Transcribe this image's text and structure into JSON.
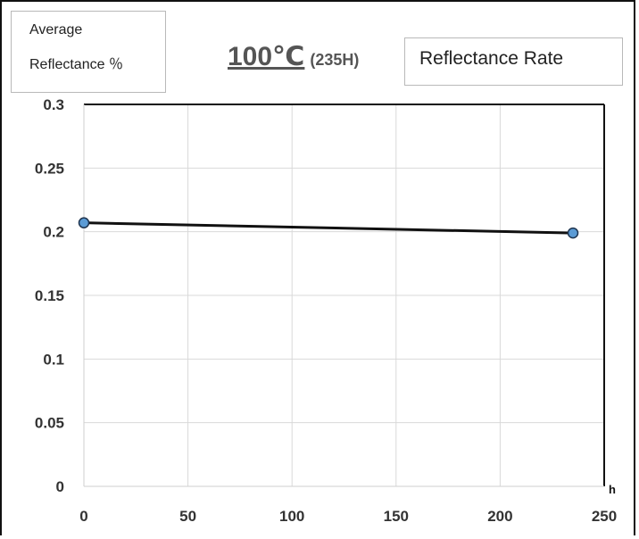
{
  "y_unit_label": {
    "line1": "Average",
    "line2": "Reflectance ％"
  },
  "title": {
    "temperature": "100℃",
    "duration": "(235H)"
  },
  "legend_label": "Reflectance Rate",
  "x_unit": "h",
  "colors": {
    "line": "#111111",
    "marker_fill": "#5b9bd5",
    "marker_edge": "#1f3550",
    "grid": "#d9d9d9"
  },
  "chart_data": {
    "type": "line",
    "x_ticks": [
      "0",
      "50",
      "100",
      "150",
      "200",
      "250"
    ],
    "y_ticks": [
      "0",
      "0.05",
      "0.1",
      "0.15",
      "0.2",
      "0.25",
      "0.3"
    ],
    "xlim": [
      0,
      250
    ],
    "ylim": [
      0,
      0.3
    ],
    "grid": true,
    "series": [
      {
        "name": "Reflectance Rate",
        "x": [
          0,
          235
        ],
        "y": [
          0.207,
          0.199
        ]
      }
    ]
  }
}
